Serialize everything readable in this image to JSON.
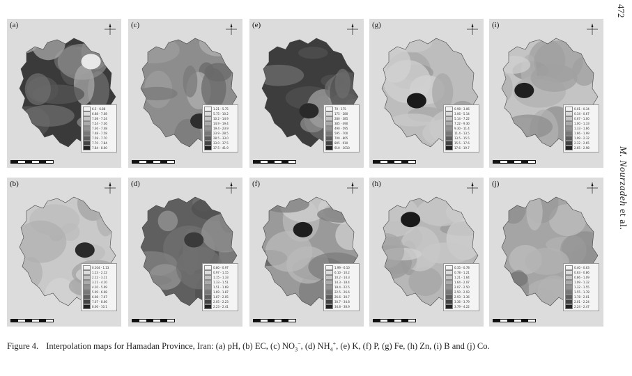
{
  "page": {
    "number": "472",
    "running_head_author": "M. Nourzadeh",
    "running_head_suffix": "et al."
  },
  "figure": {
    "panels": [
      {
        "id": "a",
        "label": "(a)",
        "tone": [
          "#3a3a3a",
          "#555",
          "#6d6d6d",
          "#8a8a8a",
          "#a9a9a9"
        ],
        "accent": "#e8e8e8",
        "legend": [
          "6.5 - 6.88",
          "6.88 - 7.08",
          "7.08 - 7.24",
          "7.24 - 7.36",
          "7.36 - 7.48",
          "7.48 - 7.58",
          "7.58 - 7.70",
          "7.70 - 7.84",
          "7.84 - 8.00"
        ]
      },
      {
        "id": "b",
        "label": "(b)",
        "tone": [
          "#c9c9c9",
          "#bcbcbc",
          "#b0b0b0",
          "#a3a3a3",
          "#d3d3d3"
        ],
        "accent": "#2a2a2a",
        "legend": [
          "0.104 - 1.13",
          "1.13 - 2.12",
          "2.12 - 3.11",
          "3.11 - 4.10",
          "4.10 - 5.09",
          "5.09 - 6.08",
          "6.08 - 7.07",
          "7.07 - 8.06",
          "8.06 - 10.1"
        ]
      },
      {
        "id": "c",
        "label": "(c)",
        "tone": [
          "#8d8d8d",
          "#7a7a7a",
          "#9e9e9e",
          "#6a6a6a",
          "#b0b0b0"
        ],
        "accent": "#2e2e2e",
        "legend": [
          "1.21 - 5.75",
          "5.75 - 10.2",
          "10.2 - 14.9",
          "14.9 - 19.4",
          "19.4 - 23.9",
          "23.9 - 28.5",
          "28.5 - 33.0",
          "33.0 - 37.5",
          "37.5 - 41.9"
        ]
      },
      {
        "id": "d",
        "label": "(d)",
        "tone": [
          "#5f5f5f",
          "#707070",
          "#828282",
          "#4f4f4f",
          "#969696"
        ],
        "accent": "#3a3a3a",
        "legend": [
          "0.80 - 0.97",
          "0.97 - 1.15",
          "1.15 - 1.33",
          "1.33 - 1.51",
          "1.51 - 1.69",
          "1.69 - 1.87",
          "1.87 - 2.05",
          "2.05 - 2.23",
          "2.23 - 2.41"
        ]
      },
      {
        "id": "e",
        "label": "(e)",
        "tone": [
          "#3d3d3d",
          "#505050",
          "#6e6e6e",
          "#8d8d8d",
          "#9f9f9f"
        ],
        "accent": "#2a2a2a",
        "legend": [
          "70 - 175",
          "175 - 280",
          "280 - 385",
          "385 - 490",
          "490 - 595",
          "595 - 700",
          "700 - 805",
          "805 - 910",
          "910 - 1010"
        ]
      },
      {
        "id": "f",
        "label": "(f)",
        "tone": [
          "#9a9a9a",
          "#b9b9b9",
          "#7c7c7c",
          "#cfcfcf",
          "#5c5c5c"
        ],
        "accent": "#1e1e1e",
        "legend": [
          "1.99 - 6.10",
          "6.10 - 10.2",
          "10.2 - 14.3",
          "14.3 - 18.4",
          "18.4 - 22.5",
          "22.5 - 26.6",
          "26.6 - 30.7",
          "30.7 - 34.8",
          "34.8 - 38.9"
        ]
      },
      {
        "id": "g",
        "label": "(g)",
        "tone": [
          "#bdbdbd",
          "#a8a8a8",
          "#c9c9c9",
          "#9a9a9a",
          "#d2d2d2"
        ],
        "accent": "#1a1a1a",
        "legend": [
          "0.98 - 3.06",
          "3.06 - 5.14",
          "5.14 - 7.22",
          "7.22 - 9.30",
          "9.30 - 11.4",
          "11.4 - 13.5",
          "13.5 - 15.5",
          "15.5 - 17.6",
          "17.6 - 19.7"
        ]
      },
      {
        "id": "h",
        "label": "(h)",
        "tone": [
          "#b7b7b7",
          "#a6a6a6",
          "#c8c8c8",
          "#989898",
          "#d0d0d0"
        ],
        "accent": "#1a1a1a",
        "legend": [
          "0.35 - 0.78",
          "0.78 - 1.21",
          "1.21 - 1.64",
          "1.64 - 2.07",
          "2.07 - 2.50",
          "2.50 - 2.93",
          "2.93 - 3.36",
          "3.36 - 3.79",
          "3.79 - 4.22"
        ]
      },
      {
        "id": "i",
        "label": "(i)",
        "tone": [
          "#c4c4c4",
          "#b2b2b2",
          "#a0a0a0",
          "#d0d0d0",
          "#8f8f8f"
        ],
        "accent": "#1f1f1f",
        "legend": [
          "0.01 - 0.34",
          "0.34 - 0.67",
          "0.67 - 1.00",
          "1.00 - 1.33",
          "1.33 - 1.66",
          "1.66 - 1.99",
          "1.99 - 2.32",
          "2.32 - 2.65",
          "2.65 - 2.98"
        ]
      },
      {
        "id": "j",
        "label": "(j)",
        "tone": [
          "#a5a5a5",
          "#9a9a9a",
          "#b3b3b3",
          "#8d8d8d",
          "#bebebe"
        ],
        "accent": "#7c7c7c",
        "legend": [
          "0.40 - 0.63",
          "0.63 - 0.86",
          "0.86 - 1.09",
          "1.09 - 1.32",
          "1.32 - 1.55",
          "1.55 - 1.78",
          "1.78 - 2.01",
          "2.01 - 2.24",
          "2.24 - 2.47"
        ]
      }
    ],
    "caption": {
      "number": "Figure 4.",
      "prefix": "Interpolation maps for Hamadan Province, Iran: (a) pH, (b) EC, (c) NO",
      "no3_sub": "3",
      "no3_sup": "−",
      "mid": ", (d) NH",
      "nh4_sub": "4",
      "nh4_sup": "+",
      "suffix": ", (e) K, (f) P, (g) Fe, (h) Zn, (i) B and (j) Co."
    }
  }
}
